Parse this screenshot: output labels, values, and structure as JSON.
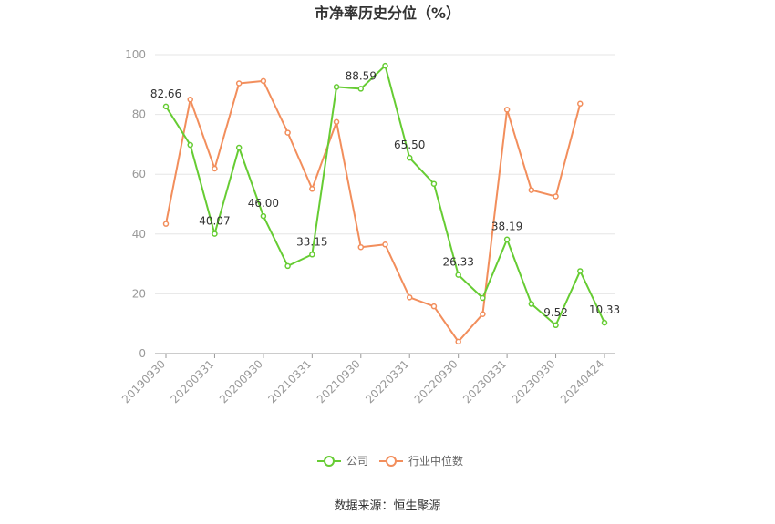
{
  "chart_data": {
    "type": "line",
    "title": "市净率历史分位（%）",
    "xlabel": "",
    "ylabel": "",
    "ylim": [
      0,
      100
    ],
    "yticks": [
      0,
      20,
      40,
      60,
      80,
      100
    ],
    "grid": true,
    "legend_position": "bottom",
    "x": [
      "20190930",
      "20191231",
      "20200331",
      "20200630",
      "20200930",
      "20201231",
      "20210331",
      "20210630",
      "20210930",
      "20211231",
      "20220331",
      "20220630",
      "20220930",
      "20221231",
      "20230331",
      "20230630",
      "20230930",
      "20231231",
      "20240424"
    ],
    "x_tick_labels": [
      "20190930",
      "20200331",
      "20200930",
      "20210331",
      "20210930",
      "20220331",
      "20220930",
      "20230331",
      "20230930",
      "20240424"
    ],
    "series": [
      {
        "name": "公司",
        "color": "#66cc33",
        "values": [
          82.66,
          69.8,
          40.07,
          68.9,
          46.0,
          29.3,
          33.15,
          89.2,
          88.59,
          96.3,
          65.5,
          56.8,
          26.33,
          18.6,
          38.19,
          16.6,
          9.52,
          27.6,
          10.33
        ],
        "labels": {
          "0": "82.66",
          "2": "40.07",
          "4": "46.00",
          "6": "33.15",
          "8": "88.59",
          "10": "65.50",
          "12": "26.33",
          "14": "38.19",
          "16": "9.52",
          "18": "10.33"
        }
      },
      {
        "name": "行业中位数",
        "color": "#f28e5c",
        "values": [
          43.4,
          85.0,
          61.9,
          90.4,
          91.2,
          73.9,
          55.1,
          77.5,
          35.6,
          36.5,
          18.8,
          15.8,
          4.0,
          13.2,
          81.6,
          54.7,
          52.6,
          83.6,
          null
        ]
      }
    ]
  },
  "footer": {
    "source": "数据来源：恒生聚源"
  }
}
